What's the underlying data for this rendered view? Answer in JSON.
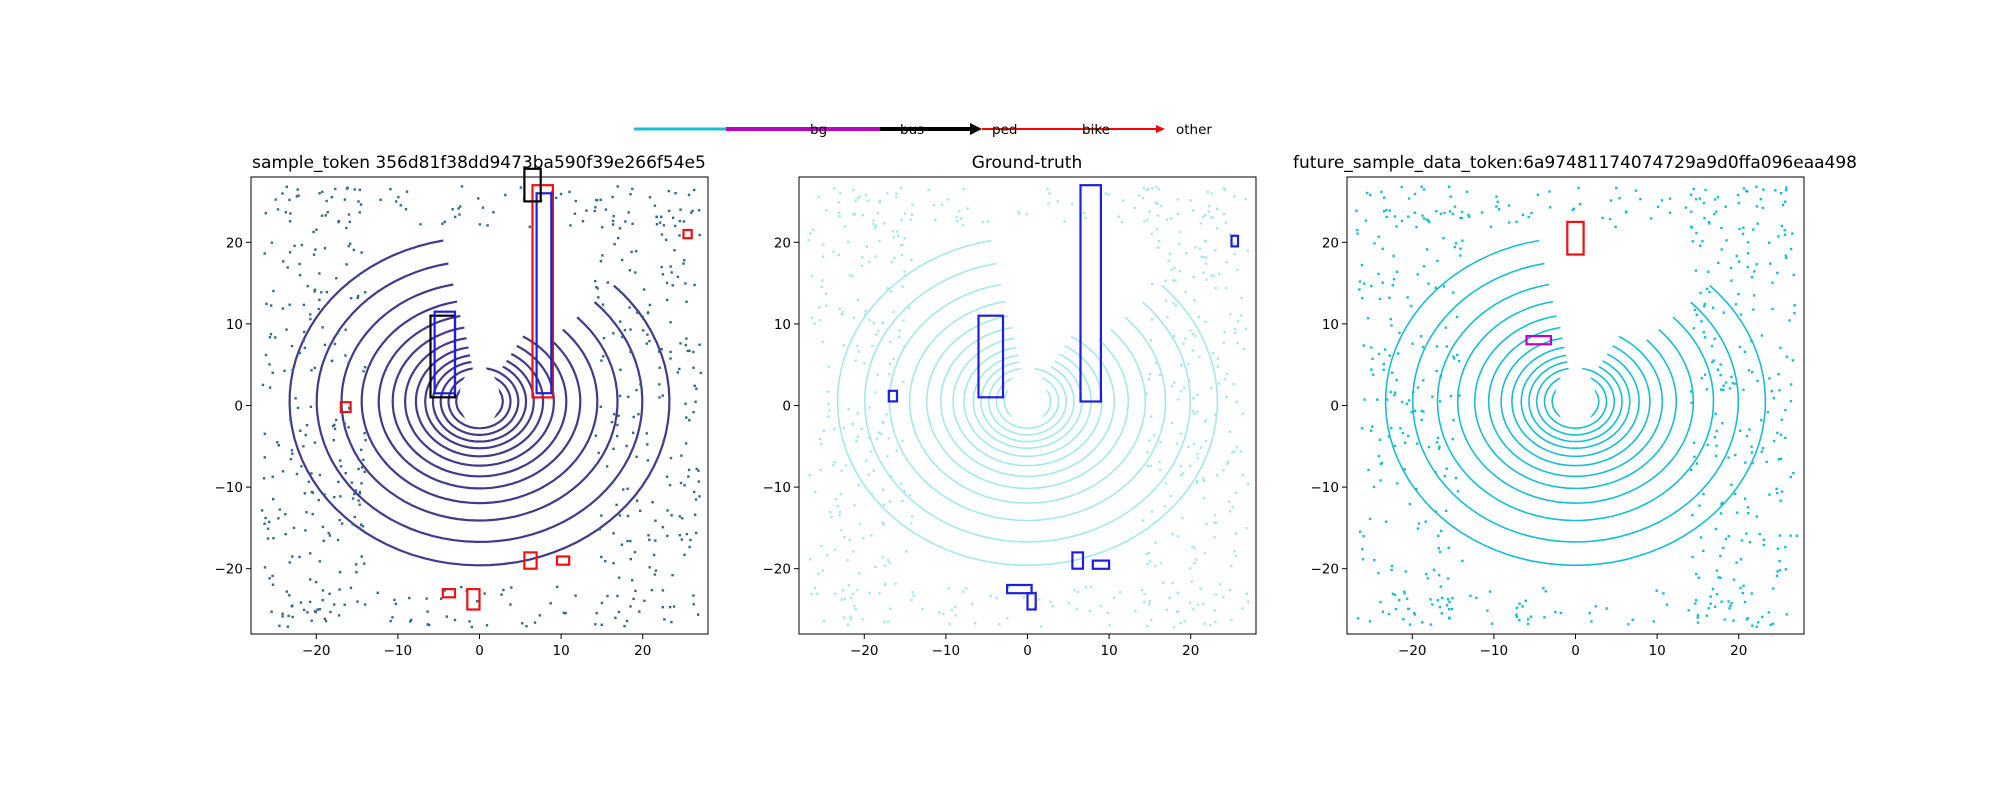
{
  "legend": {
    "entries": [
      {
        "label": "bg",
        "color": "#17becf"
      },
      {
        "label": "bus",
        "color": "#c000c0"
      },
      {
        "label": "ped",
        "color": "#000000"
      },
      {
        "label": "bike",
        "color": "#ff0000"
      },
      {
        "label": "other",
        "color": "#ff0000"
      }
    ]
  },
  "chart_data": [
    {
      "type": "scatter",
      "title": "sample_token 356d81f38dd9473ba590f39e266f54e5",
      "xlabel": "",
      "ylabel": "",
      "xlim": [
        -28,
        28
      ],
      "ylim": [
        -28,
        28
      ],
      "xticks": [
        -20,
        -10,
        0,
        10,
        20
      ],
      "yticks": [
        -20,
        -10,
        0,
        10,
        20
      ],
      "grid": false,
      "point_color": "#413a8a",
      "point_color_far": "#2f6b87",
      "boxes": [
        {
          "cls": "ped",
          "edge": "black",
          "x": [
            -6,
            -3
          ],
          "y": [
            1,
            11
          ]
        },
        {
          "cls": "ped",
          "edge": "blue",
          "x": [
            -5.5,
            -3
          ],
          "y": [
            1.5,
            11.5
          ]
        },
        {
          "cls": "bike",
          "edge": "red",
          "x": [
            6.5,
            9
          ],
          "y": [
            1,
            27
          ]
        },
        {
          "cls": "ped",
          "edge": "blue",
          "x": [
            7,
            8.8
          ],
          "y": [
            1.5,
            26
          ]
        },
        {
          "cls": "ped",
          "edge": "black",
          "x": [
            5.5,
            7.5
          ],
          "y": [
            25,
            29
          ]
        },
        {
          "cls": "bike",
          "edge": "red",
          "x": [
            -17,
            -15.8
          ],
          "y": [
            -0.8,
            0.4
          ]
        },
        {
          "cls": "bike",
          "edge": "red",
          "x": [
            5.5,
            7
          ],
          "y": [
            -20,
            -18
          ]
        },
        {
          "cls": "bike",
          "edge": "red",
          "x": [
            -4.5,
            -3
          ],
          "y": [
            -23.5,
            -22.5
          ]
        },
        {
          "cls": "bike",
          "edge": "red",
          "x": [
            -1.5,
            0
          ],
          "y": [
            -25,
            -22.5
          ]
        },
        {
          "cls": "bike",
          "edge": "red",
          "x": [
            9.5,
            11
          ],
          "y": [
            -19.5,
            -18.5
          ]
        },
        {
          "cls": "bike",
          "edge": "red",
          "x": [
            25,
            26
          ],
          "y": [
            20.5,
            21.5
          ]
        }
      ]
    },
    {
      "type": "scatter",
      "title": "Ground-truth",
      "xlabel": "",
      "ylabel": "",
      "xlim": [
        -28,
        28
      ],
      "ylim": [
        -28,
        28
      ],
      "xticks": [
        -20,
        -10,
        0,
        10,
        20
      ],
      "yticks": [
        -20,
        -10,
        0,
        10,
        20
      ],
      "grid": false,
      "point_color": "#a6e8e8",
      "boxes": [
        {
          "cls": "ped",
          "edge": "blue",
          "x": [
            -6,
            -3
          ],
          "y": [
            1,
            11
          ]
        },
        {
          "cls": "ped",
          "edge": "blue",
          "x": [
            6.5,
            9
          ],
          "y": [
            0.5,
            27
          ]
        },
        {
          "cls": "ped",
          "edge": "blue",
          "x": [
            -17,
            -16
          ],
          "y": [
            0.5,
            1.8
          ]
        },
        {
          "cls": "ped",
          "edge": "blue",
          "x": [
            5.5,
            6.8
          ],
          "y": [
            -20,
            -18
          ]
        },
        {
          "cls": "ped",
          "edge": "blue",
          "x": [
            8,
            10
          ],
          "y": [
            -20,
            -19
          ]
        },
        {
          "cls": "ped",
          "edge": "blue",
          "x": [
            -2.5,
            0.5
          ],
          "y": [
            -23,
            -22
          ]
        },
        {
          "cls": "ped",
          "edge": "blue",
          "x": [
            0,
            1
          ],
          "y": [
            -25,
            -23
          ]
        },
        {
          "cls": "ped",
          "edge": "blue",
          "x": [
            25,
            25.8
          ],
          "y": [
            19.5,
            20.8
          ]
        }
      ]
    },
    {
      "type": "scatter",
      "title": "future_sample_data_token:6a97481174074729a9d0ffa096eaa498",
      "xlabel": "",
      "ylabel": "",
      "xlim": [
        -28,
        28
      ],
      "ylim": [
        -28,
        28
      ],
      "xticks": [
        -20,
        -10,
        0,
        10,
        20
      ],
      "yticks": [
        -20,
        -10,
        0,
        10,
        20
      ],
      "grid": false,
      "point_color": "#17becf",
      "boxes": [
        {
          "cls": "bike",
          "edge": "red",
          "x": [
            -1,
            1
          ],
          "y": [
            18.5,
            22.5
          ]
        },
        {
          "cls": "bus",
          "edge": "magenta",
          "x": [
            -6,
            -3
          ],
          "y": [
            7.5,
            8.5
          ]
        }
      ]
    }
  ]
}
